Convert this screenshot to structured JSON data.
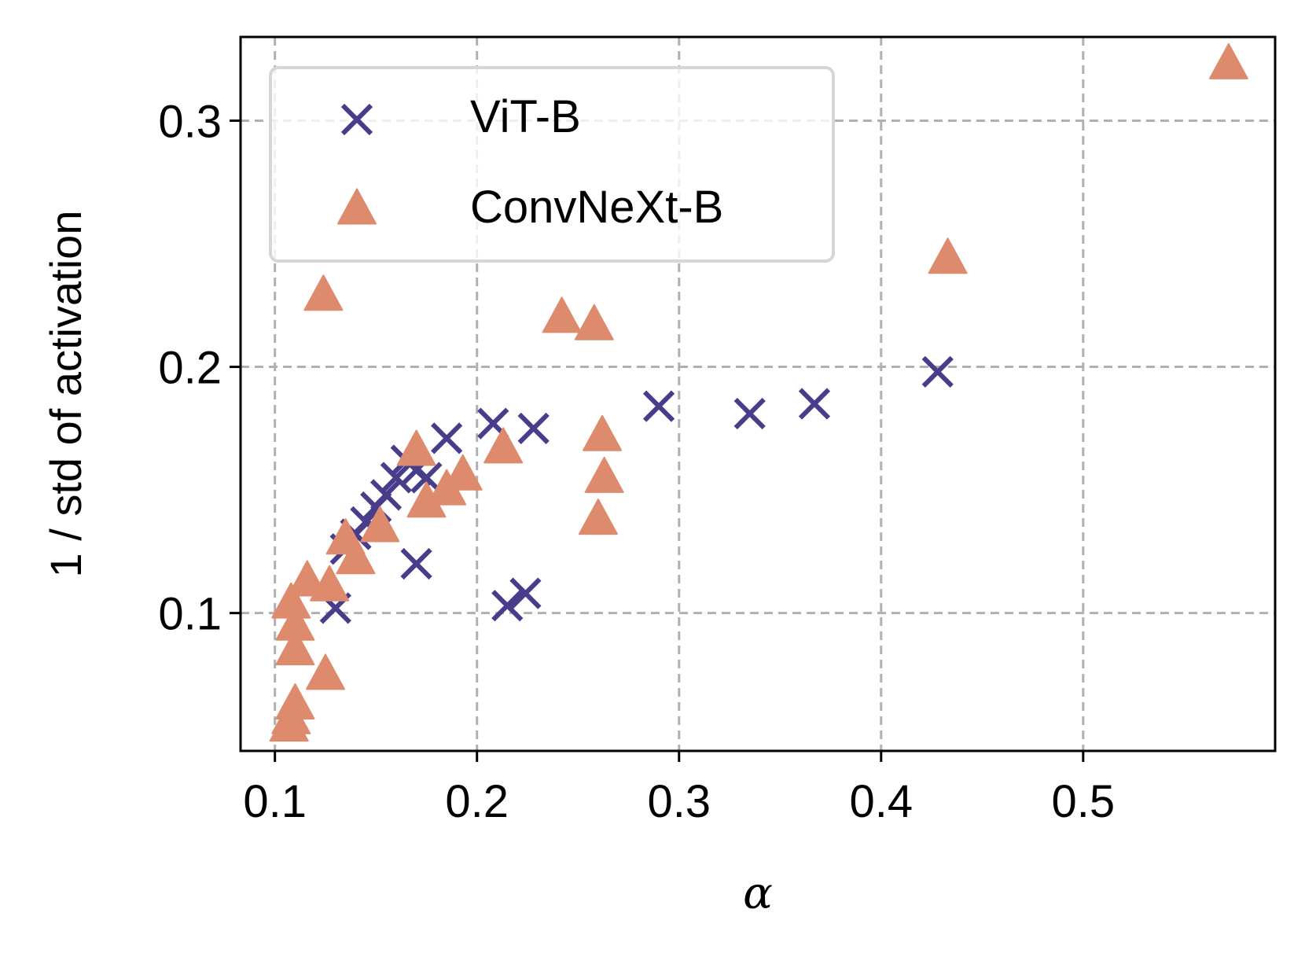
{
  "chart_data": {
    "type": "scatter",
    "title": "",
    "xlabel": "α",
    "ylabel": "1 / std of activation",
    "xlim": [
      0.083,
      0.595
    ],
    "ylim": [
      0.044,
      0.334
    ],
    "xticks": [
      0.1,
      0.2,
      0.3,
      0.4,
      0.5
    ],
    "xtick_labels": [
      "0.1",
      "0.2",
      "0.3",
      "0.4",
      "0.5"
    ],
    "yticks": [
      0.1,
      0.2,
      0.3
    ],
    "ytick_labels": [
      "0.1",
      "0.2",
      "0.3"
    ],
    "grid": true,
    "legend_position": "upper-left",
    "series": [
      {
        "name": "ViT-B",
        "marker": "x",
        "color": "#483d8b",
        "points": [
          [
            0.13,
            0.102
          ],
          [
            0.135,
            0.126
          ],
          [
            0.14,
            0.132
          ],
          [
            0.145,
            0.137
          ],
          [
            0.15,
            0.143
          ],
          [
            0.155,
            0.148
          ],
          [
            0.16,
            0.155
          ],
          [
            0.165,
            0.162
          ],
          [
            0.17,
            0.158
          ],
          [
            0.175,
            0.155
          ],
          [
            0.17,
            0.12
          ],
          [
            0.185,
            0.171
          ],
          [
            0.208,
            0.177
          ],
          [
            0.228,
            0.175
          ],
          [
            0.215,
            0.103
          ],
          [
            0.224,
            0.108
          ],
          [
            0.29,
            0.184
          ],
          [
            0.335,
            0.181
          ],
          [
            0.367,
            0.185
          ],
          [
            0.428,
            0.198
          ]
        ]
      },
      {
        "name": "ConvNeXt-B",
        "marker": "triangle",
        "color": "#de8a6c",
        "points": [
          [
            0.572,
            0.323
          ],
          [
            0.433,
            0.244
          ],
          [
            0.124,
            0.229
          ],
          [
            0.242,
            0.22
          ],
          [
            0.258,
            0.217
          ],
          [
            0.108,
            0.104
          ],
          [
            0.116,
            0.113
          ],
          [
            0.127,
            0.111
          ],
          [
            0.11,
            0.095
          ],
          [
            0.11,
            0.085
          ],
          [
            0.125,
            0.075
          ],
          [
            0.11,
            0.063
          ],
          [
            0.108,
            0.057
          ],
          [
            0.107,
            0.054
          ],
          [
            0.135,
            0.13
          ],
          [
            0.14,
            0.122
          ],
          [
            0.152,
            0.135
          ],
          [
            0.17,
            0.166
          ],
          [
            0.175,
            0.145
          ],
          [
            0.185,
            0.15
          ],
          [
            0.193,
            0.156
          ],
          [
            0.213,
            0.167
          ],
          [
            0.262,
            0.172
          ],
          [
            0.263,
            0.155
          ],
          [
            0.26,
            0.138
          ]
        ]
      }
    ]
  }
}
